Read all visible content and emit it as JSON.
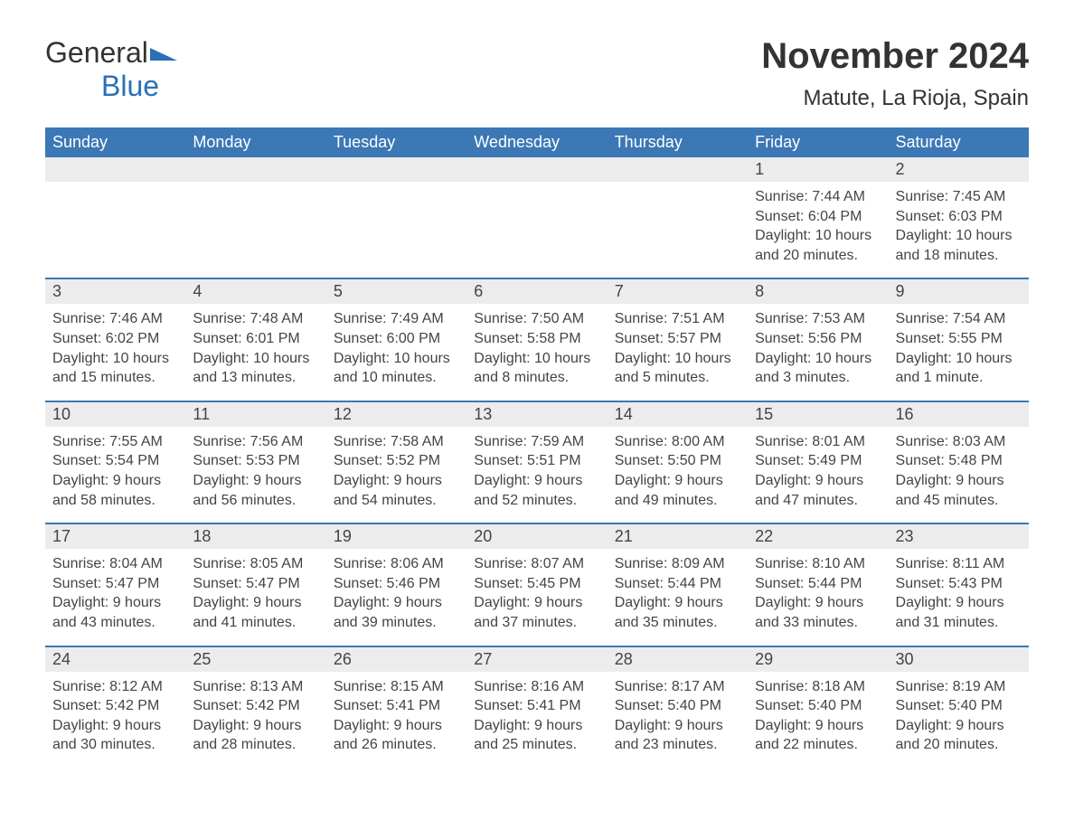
{
  "logo": {
    "word1": "General",
    "word2": "Blue"
  },
  "title": "November 2024",
  "location": "Matute, La Rioja, Spain",
  "colors": {
    "header_bg": "#3b78b5",
    "header_fg": "#ffffff",
    "daynum_bg": "#ececec",
    "text": "#444444",
    "rule": "#3b78b5",
    "logo_blue": "#2a70b8"
  },
  "weekdays": [
    "Sunday",
    "Monday",
    "Tuesday",
    "Wednesday",
    "Thursday",
    "Friday",
    "Saturday"
  ],
  "weeks": [
    [
      {
        "blank": true
      },
      {
        "blank": true
      },
      {
        "blank": true
      },
      {
        "blank": true
      },
      {
        "blank": true
      },
      {
        "day": "1",
        "sunrise": "Sunrise: 7:44 AM",
        "sunset": "Sunset: 6:04 PM",
        "daylight": "Daylight: 10 hours and 20 minutes."
      },
      {
        "day": "2",
        "sunrise": "Sunrise: 7:45 AM",
        "sunset": "Sunset: 6:03 PM",
        "daylight": "Daylight: 10 hours and 18 minutes."
      }
    ],
    [
      {
        "day": "3",
        "sunrise": "Sunrise: 7:46 AM",
        "sunset": "Sunset: 6:02 PM",
        "daylight": "Daylight: 10 hours and 15 minutes."
      },
      {
        "day": "4",
        "sunrise": "Sunrise: 7:48 AM",
        "sunset": "Sunset: 6:01 PM",
        "daylight": "Daylight: 10 hours and 13 minutes."
      },
      {
        "day": "5",
        "sunrise": "Sunrise: 7:49 AM",
        "sunset": "Sunset: 6:00 PM",
        "daylight": "Daylight: 10 hours and 10 minutes."
      },
      {
        "day": "6",
        "sunrise": "Sunrise: 7:50 AM",
        "sunset": "Sunset: 5:58 PM",
        "daylight": "Daylight: 10 hours and 8 minutes."
      },
      {
        "day": "7",
        "sunrise": "Sunrise: 7:51 AM",
        "sunset": "Sunset: 5:57 PM",
        "daylight": "Daylight: 10 hours and 5 minutes."
      },
      {
        "day": "8",
        "sunrise": "Sunrise: 7:53 AM",
        "sunset": "Sunset: 5:56 PM",
        "daylight": "Daylight: 10 hours and 3 minutes."
      },
      {
        "day": "9",
        "sunrise": "Sunrise: 7:54 AM",
        "sunset": "Sunset: 5:55 PM",
        "daylight": "Daylight: 10 hours and 1 minute."
      }
    ],
    [
      {
        "day": "10",
        "sunrise": "Sunrise: 7:55 AM",
        "sunset": "Sunset: 5:54 PM",
        "daylight": "Daylight: 9 hours and 58 minutes."
      },
      {
        "day": "11",
        "sunrise": "Sunrise: 7:56 AM",
        "sunset": "Sunset: 5:53 PM",
        "daylight": "Daylight: 9 hours and 56 minutes."
      },
      {
        "day": "12",
        "sunrise": "Sunrise: 7:58 AM",
        "sunset": "Sunset: 5:52 PM",
        "daylight": "Daylight: 9 hours and 54 minutes."
      },
      {
        "day": "13",
        "sunrise": "Sunrise: 7:59 AM",
        "sunset": "Sunset: 5:51 PM",
        "daylight": "Daylight: 9 hours and 52 minutes."
      },
      {
        "day": "14",
        "sunrise": "Sunrise: 8:00 AM",
        "sunset": "Sunset: 5:50 PM",
        "daylight": "Daylight: 9 hours and 49 minutes."
      },
      {
        "day": "15",
        "sunrise": "Sunrise: 8:01 AM",
        "sunset": "Sunset: 5:49 PM",
        "daylight": "Daylight: 9 hours and 47 minutes."
      },
      {
        "day": "16",
        "sunrise": "Sunrise: 8:03 AM",
        "sunset": "Sunset: 5:48 PM",
        "daylight": "Daylight: 9 hours and 45 minutes."
      }
    ],
    [
      {
        "day": "17",
        "sunrise": "Sunrise: 8:04 AM",
        "sunset": "Sunset: 5:47 PM",
        "daylight": "Daylight: 9 hours and 43 minutes."
      },
      {
        "day": "18",
        "sunrise": "Sunrise: 8:05 AM",
        "sunset": "Sunset: 5:47 PM",
        "daylight": "Daylight: 9 hours and 41 minutes."
      },
      {
        "day": "19",
        "sunrise": "Sunrise: 8:06 AM",
        "sunset": "Sunset: 5:46 PM",
        "daylight": "Daylight: 9 hours and 39 minutes."
      },
      {
        "day": "20",
        "sunrise": "Sunrise: 8:07 AM",
        "sunset": "Sunset: 5:45 PM",
        "daylight": "Daylight: 9 hours and 37 minutes."
      },
      {
        "day": "21",
        "sunrise": "Sunrise: 8:09 AM",
        "sunset": "Sunset: 5:44 PM",
        "daylight": "Daylight: 9 hours and 35 minutes."
      },
      {
        "day": "22",
        "sunrise": "Sunrise: 8:10 AM",
        "sunset": "Sunset: 5:44 PM",
        "daylight": "Daylight: 9 hours and 33 minutes."
      },
      {
        "day": "23",
        "sunrise": "Sunrise: 8:11 AM",
        "sunset": "Sunset: 5:43 PM",
        "daylight": "Daylight: 9 hours and 31 minutes."
      }
    ],
    [
      {
        "day": "24",
        "sunrise": "Sunrise: 8:12 AM",
        "sunset": "Sunset: 5:42 PM",
        "daylight": "Daylight: 9 hours and 30 minutes."
      },
      {
        "day": "25",
        "sunrise": "Sunrise: 8:13 AM",
        "sunset": "Sunset: 5:42 PM",
        "daylight": "Daylight: 9 hours and 28 minutes."
      },
      {
        "day": "26",
        "sunrise": "Sunrise: 8:15 AM",
        "sunset": "Sunset: 5:41 PM",
        "daylight": "Daylight: 9 hours and 26 minutes."
      },
      {
        "day": "27",
        "sunrise": "Sunrise: 8:16 AM",
        "sunset": "Sunset: 5:41 PM",
        "daylight": "Daylight: 9 hours and 25 minutes."
      },
      {
        "day": "28",
        "sunrise": "Sunrise: 8:17 AM",
        "sunset": "Sunset: 5:40 PM",
        "daylight": "Daylight: 9 hours and 23 minutes."
      },
      {
        "day": "29",
        "sunrise": "Sunrise: 8:18 AM",
        "sunset": "Sunset: 5:40 PM",
        "daylight": "Daylight: 9 hours and 22 minutes."
      },
      {
        "day": "30",
        "sunrise": "Sunrise: 8:19 AM",
        "sunset": "Sunset: 5:40 PM",
        "daylight": "Daylight: 9 hours and 20 minutes."
      }
    ]
  ]
}
